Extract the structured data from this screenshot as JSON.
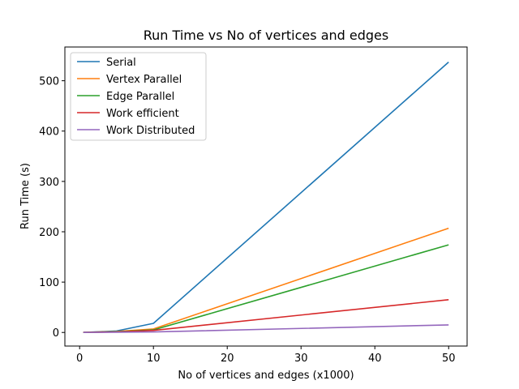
{
  "chart_data": {
    "type": "line",
    "title": "Run Time vs No of vertices and edges",
    "xlabel": "No of vertices and edges (x1000)",
    "ylabel": "Run Time (s)",
    "x": [
      0.5,
      5,
      10,
      50
    ],
    "xlim": [
      -2,
      52.5
    ],
    "ylim": [
      -27,
      567
    ],
    "xticks": [
      0,
      10,
      20,
      30,
      40,
      50
    ],
    "yticks": [
      0,
      100,
      200,
      300,
      400,
      500
    ],
    "grid": false,
    "legend_position": "top-left",
    "series": [
      {
        "name": "Serial",
        "color": "#1f77b4",
        "values": [
          0,
          3,
          18,
          537
        ]
      },
      {
        "name": "Vertex Parallel",
        "color": "#ff7f0e",
        "values": [
          0,
          2,
          7,
          207
        ]
      },
      {
        "name": "Edge Parallel",
        "color": "#2ca02c",
        "values": [
          0,
          1.5,
          5,
          174
        ]
      },
      {
        "name": "Work efficient",
        "color": "#d62728",
        "values": [
          0,
          1,
          4,
          65
        ]
      },
      {
        "name": "Work Distributed",
        "color": "#9467bd",
        "values": [
          0,
          0.5,
          1,
          15
        ]
      }
    ]
  }
}
